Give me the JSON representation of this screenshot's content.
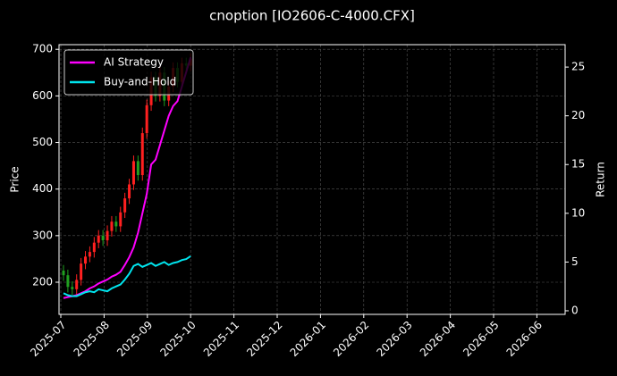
{
  "chart_data": {
    "type": "candlestick",
    "title": "cnoption [IO2606-C-4000.CFX]",
    "ylabel": "Price",
    "y2label": "Return",
    "xticks": [
      "2025-07",
      "2025-08",
      "2025-09",
      "2025-10",
      "2025-11",
      "2025-12",
      "2026-01",
      "2026-02",
      "2026-03",
      "2026-04",
      "2026-05",
      "2026-06"
    ],
    "ylim": [
      131,
      710
    ],
    "yticks": [
      200,
      300,
      400,
      500,
      600,
      700
    ],
    "y2lim": [
      -0.37,
      27.3
    ],
    "y2ticks": [
      0,
      5,
      10,
      15,
      20,
      25
    ],
    "grid": true,
    "legend": "upper left",
    "up_color": "#ff2020",
    "down_color": "#20a020",
    "open": [
      225,
      215,
      190,
      185,
      205,
      240,
      255,
      265,
      285,
      300,
      290,
      310,
      330,
      320,
      350,
      380,
      410,
      460,
      430,
      520,
      580,
      640,
      600,
      650,
      590,
      620,
      660,
      630,
      670,
      665
    ],
    "high": [
      237,
      227,
      202,
      217,
      252,
      267,
      277,
      297,
      312,
      312,
      322,
      342,
      342,
      362,
      392,
      422,
      472,
      472,
      532,
      592,
      652,
      652,
      662,
      662,
      632,
      672,
      672,
      682,
      682,
      692
    ],
    "low": [
      203,
      178,
      173,
      173,
      193,
      228,
      243,
      253,
      273,
      278,
      278,
      298,
      308,
      308,
      338,
      368,
      398,
      418,
      418,
      508,
      568,
      588,
      588,
      578,
      578,
      608,
      618,
      618,
      653,
      653
    ],
    "close": [
      215,
      190,
      185,
      205,
      240,
      255,
      265,
      285,
      300,
      290,
      310,
      330,
      320,
      350,
      380,
      410,
      460,
      430,
      520,
      580,
      640,
      600,
      650,
      590,
      620,
      660,
      630,
      670,
      665,
      680
    ],
    "series": [
      {
        "name": "AI Strategy",
        "color": "#ff00ff",
        "axis": "y2",
        "values": [
          1.3,
          1.4,
          1.5,
          1.6,
          1.8,
          2.0,
          2.3,
          2.5,
          2.8,
          3.0,
          3.2,
          3.5,
          3.7,
          4.0,
          4.7,
          5.5,
          6.5,
          8.0,
          10.0,
          12.0,
          15.0,
          15.5,
          17.0,
          18.5,
          20.0,
          21.0,
          21.5,
          23.0,
          24.5,
          26.0
        ]
      },
      {
        "name": "Buy-and-Hold",
        "color": "#00e5ee",
        "axis": "y2",
        "values": [
          1.8,
          1.6,
          1.5,
          1.5,
          1.7,
          1.9,
          2.0,
          1.9,
          2.2,
          2.1,
          2.0,
          2.3,
          2.5,
          2.7,
          3.2,
          3.8,
          4.6,
          4.8,
          4.5,
          4.7,
          4.9,
          4.6,
          4.8,
          5.0,
          4.7,
          4.9,
          5.0,
          5.2,
          5.3,
          5.6
        ]
      }
    ]
  }
}
